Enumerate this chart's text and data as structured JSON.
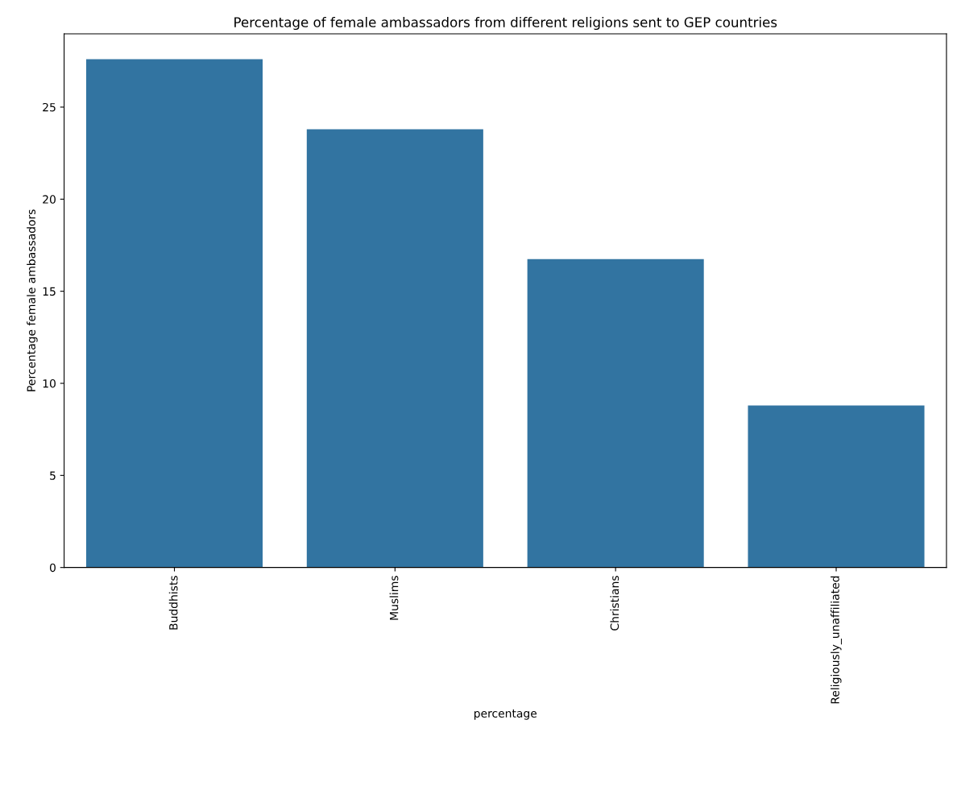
{
  "chart_data": {
    "type": "bar",
    "title": "Percentage of female ambassadors from different religions sent to GEP countries",
    "xlabel": "percentage",
    "ylabel": "Percentage female ambassadors",
    "categories": [
      "Buddhists",
      "Muslims",
      "Christians",
      "Religiously_unaffiliated"
    ],
    "values": [
      27.6,
      23.8,
      16.75,
      8.8
    ],
    "color": "#3274a1",
    "ylim": [
      0,
      28.98
    ],
    "yticks": [
      0,
      5,
      10,
      15,
      20,
      25
    ],
    "grid": false,
    "legend": false
  }
}
